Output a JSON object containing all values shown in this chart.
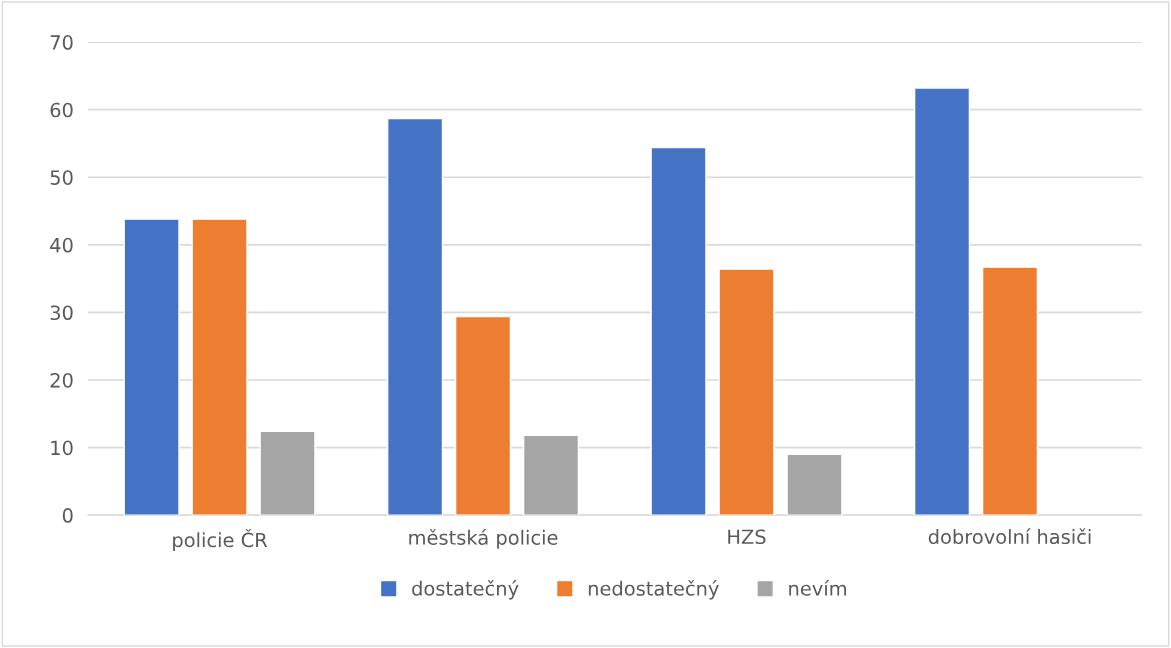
{
  "chart_data": {
    "type": "bar",
    "categories": [
      "policie ČR",
      "městská policie",
      "HZS",
      "dobrovolní hasiči"
    ],
    "series": [
      {
        "name": "dostatečný",
        "color": "#4472c4",
        "values": [
          43.8,
          58.7,
          54.4,
          63.2
        ]
      },
      {
        "name": "nedostatečný",
        "color": "#ed7d31",
        "values": [
          43.8,
          29.4,
          36.4,
          36.7
        ]
      },
      {
        "name": "nevím",
        "color": "#a5a5a5",
        "values": [
          12.4,
          11.8,
          9.0,
          null
        ]
      }
    ],
    "ylim": [
      0,
      70
    ],
    "yticks": [
      0,
      10,
      20,
      30,
      40,
      50,
      60,
      70
    ],
    "grid": "y",
    "legend": "bottom"
  }
}
